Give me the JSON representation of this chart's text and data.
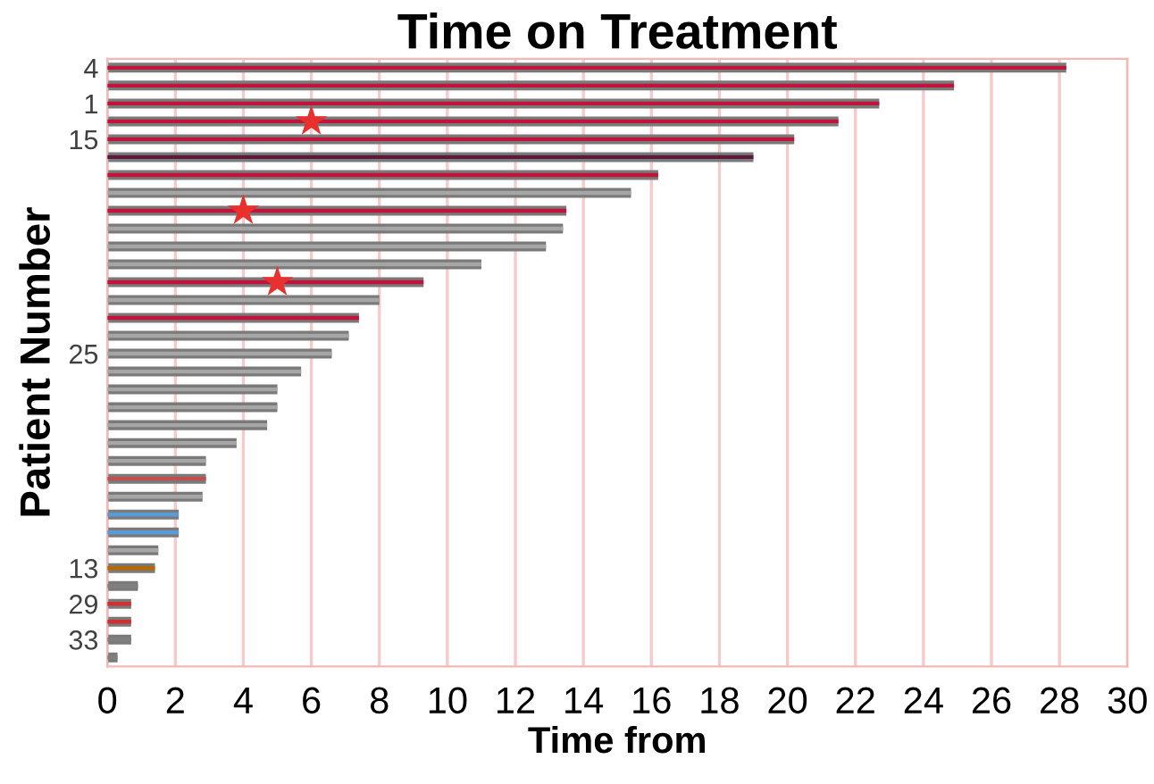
{
  "chart_data": {
    "type": "bar",
    "orientation": "horizontal",
    "title": "Time on Treatment",
    "xlabel": "Time from",
    "ylabel": "Patient Number",
    "categories": [
      "4",
      null,
      "1",
      null,
      "15",
      null,
      null,
      null,
      null,
      null,
      null,
      null,
      null,
      null,
      null,
      null,
      "25",
      null,
      null,
      null,
      null,
      null,
      null,
      null,
      null,
      null,
      null,
      null,
      "13",
      null,
      "29",
      null,
      "33",
      null
    ],
    "series": [
      {
        "values": [
          28.2,
          24.9,
          22.7,
          21.5,
          20.2,
          19.0,
          16.2,
          15.4,
          13.5,
          13.4,
          12.9,
          11.0,
          9.3,
          8.0,
          7.4,
          7.1,
          6.6,
          5.7,
          5.0,
          5.0,
          4.7,
          3.8,
          2.9,
          2.9,
          2.8,
          2.1,
          2.1,
          1.5,
          1.4,
          0.9,
          0.7,
          0.7,
          0.7,
          0.3
        ],
        "colors": [
          "#c0143c",
          "#c0143c",
          "#c0143c",
          "#c0143c",
          "#c0143c",
          "#5a1a3a",
          "#c0143c",
          "#a6a6a6",
          "#c0143c",
          "#a6a6a6",
          "#a6a6a6",
          "#a6a6a6",
          "#c0143c",
          "#a6a6a6",
          "#c0143c",
          "#a6a6a6",
          "#a6a6a6",
          "#a6a6a6",
          "#a6a6a6",
          "#a6a6a6",
          "#a6a6a6",
          "#a6a6a6",
          "#a6a6a6",
          "#c0504d",
          "#a6a6a6",
          "#5b9bd5",
          "#5b9bd5",
          "#a6a6a6",
          "#b46a00",
          "#7f7f7f",
          "#d03030",
          "#d03030",
          "#7f7f7f",
          "#7f7f7f"
        ]
      },
      {
        "type": "scatter",
        "marker": "star",
        "color": "#e8312f",
        "values": [
          null,
          null,
          null,
          6.0,
          null,
          null,
          null,
          null,
          4.0,
          null,
          null,
          null,
          5.0,
          null,
          null,
          null,
          null,
          null,
          null,
          null,
          null,
          null,
          null,
          null,
          null,
          null,
          null,
          null,
          null,
          null,
          null,
          null,
          null,
          null
        ]
      }
    ],
    "xlim": [
      0,
      30
    ],
    "xticks": [
      0,
      2,
      4,
      6,
      8,
      10,
      12,
      14,
      16,
      18,
      20,
      22,
      24,
      26,
      28,
      30
    ],
    "grid": "x"
  }
}
